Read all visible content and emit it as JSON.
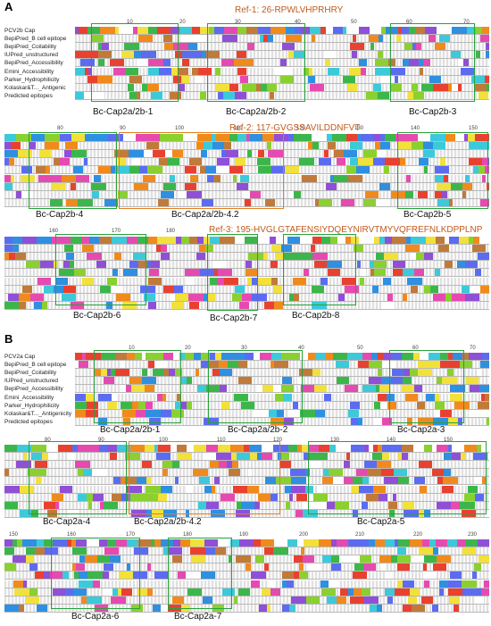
{
  "panels": [
    {
      "letter": "A",
      "labels": [
        "PCV2b Cap",
        "BepiPred_B cell epitope",
        "BepiPred_Coilability",
        "IUPred_unstructured",
        "BepiPred_Accessibility",
        "Emini_Accessibility",
        "Parker_Hydrophilicity",
        "Kolaskar&T..._Antigenic",
        "Predicted epitopes"
      ],
      "refs": [
        "Ref-1: 26-RPWLVHPRHRY",
        "Ref-2: 117-GVGSSAVILDDNFVT",
        "Ref-3: 195-HVGLGTAFENSIYDQEYNIRVTMYVQFREFNLKDPPLNP"
      ],
      "ticks": [
        "10",
        "20",
        "30",
        "40",
        "50",
        "60",
        "70",
        "80",
        "90",
        "100",
        "110",
        "120",
        "130",
        "140",
        "150",
        "160",
        "170",
        "180",
        "190",
        "200",
        "210",
        "220",
        "230"
      ],
      "epitopes": [
        "Bc-Cap2a/2b-1",
        "Bc-Cap2a/2b-2",
        "Bc-Cap2b-3",
        "Bc-Cap2b-4",
        "Bc-Cap2a/2b-4.2",
        "Bc-Cap2b-5",
        "Bc-Cap2b-6",
        "Bc-Cap2b-7",
        "Bc-Cap2b-8"
      ]
    },
    {
      "letter": "B",
      "labels": [
        "PCV2a Cap",
        "BepiPred_B cell epitope",
        "BepiPred_Coilability",
        "IUPred_unstructured",
        "BepiPred_Accessibility",
        "Emini_Accessibility",
        "Parker_Hydrophilicity",
        "Kolaskar&T..._Antigenicity",
        "Predicted epitopes"
      ],
      "ticks": [
        "10",
        "20",
        "30",
        "40",
        "50",
        "60",
        "70",
        "80",
        "90",
        "100",
        "110",
        "120",
        "130",
        "140",
        "150",
        "160",
        "170",
        "180",
        "190",
        "200",
        "210",
        "220",
        "230"
      ],
      "epitopes": [
        "Bc-Cap2a/2b-1",
        "Bc-Cap2a/2b-2",
        "Bc-Cap2a-3",
        "Bc-Cap2a-4",
        "Bc-Cap2a/2b-4.2",
        "Bc-Cap2a-5",
        "Bc-Cap2a-6",
        "Bc-Cap2a-7"
      ]
    }
  ],
  "colors": {
    "green_box": "#27a13c",
    "orange_box": "#e0801f",
    "ref_text": "#c25a1d"
  }
}
